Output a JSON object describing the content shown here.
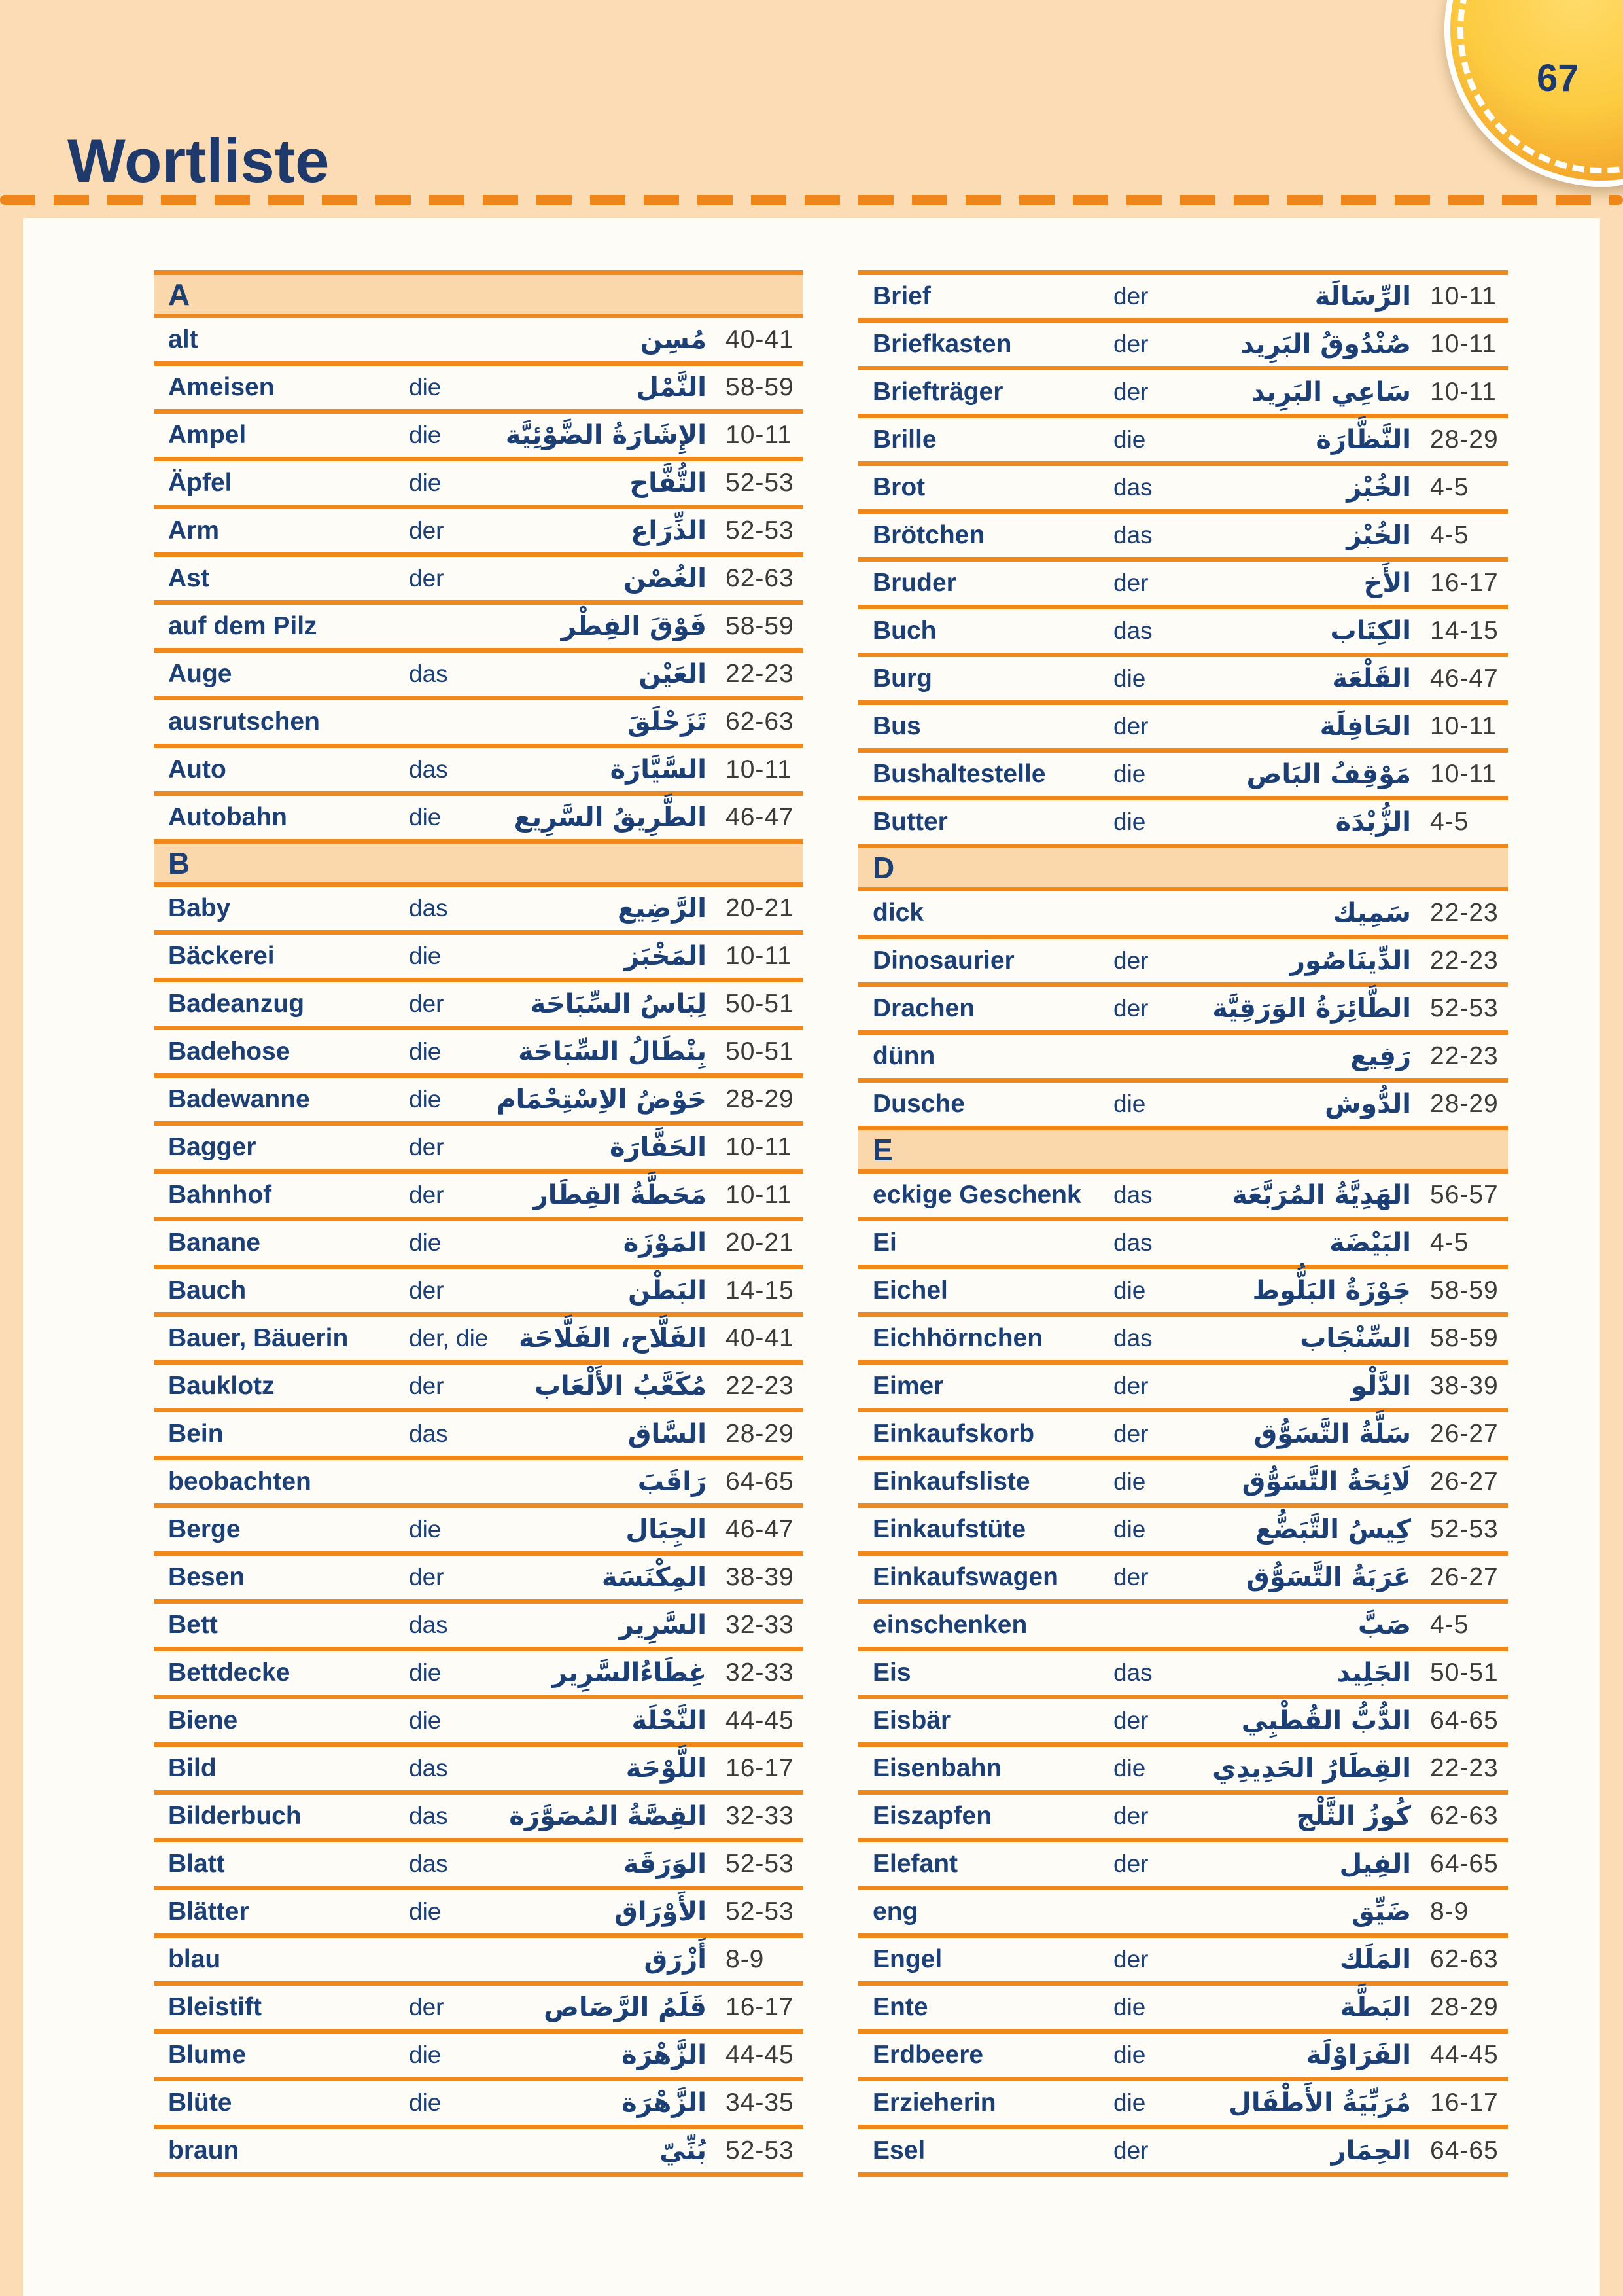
{
  "page_number": "67",
  "title": "Wortliste",
  "colors": {
    "accent_orange": "#f0881c",
    "dash_orange": "#ee8619",
    "page_peach": "#fbdcb5",
    "section_header_peach": "#fbd8ab",
    "panel_white": "#fdfcf7",
    "text_navy": "#1c4076",
    "title_navy": "#1e3a6c",
    "page_number_gray": "#3b3b39",
    "sun_yellow": "#ffdc6b",
    "sun_orange": "#ee9421"
  },
  "columns": [
    {
      "sections": [
        {
          "letter": "A",
          "entries": [
            {
              "de": "alt",
              "article": "",
              "ar": "مُسِن",
              "pages": "40-41"
            },
            {
              "de": "Ameisen",
              "article": "die",
              "ar": "النَّمْل",
              "pages": "58-59"
            },
            {
              "de": "Ampel",
              "article": "die",
              "ar": "الإِشَارَةُ الضَّوْئِيَّة",
              "pages": "10-11"
            },
            {
              "de": "Äpfel",
              "article": "die",
              "ar": "التُّفَّاح",
              "pages": "52-53"
            },
            {
              "de": "Arm",
              "article": "der",
              "ar": "الذِّرَاع",
              "pages": "52-53"
            },
            {
              "de": "Ast",
              "article": "der",
              "ar": "الغُصْن",
              "pages": "62-63"
            },
            {
              "de": "auf dem Pilz",
              "article": "",
              "ar": "فَوْقَ الفِطْر",
              "pages": "58-59"
            },
            {
              "de": "Auge",
              "article": "das",
              "ar": "العَيْن",
              "pages": "22-23"
            },
            {
              "de": "ausrutschen",
              "article": "",
              "ar": "تَزَحْلَقَ",
              "pages": "62-63"
            },
            {
              "de": "Auto",
              "article": "das",
              "ar": "السَّيَّارَة",
              "pages": "10-11"
            },
            {
              "de": "Autobahn",
              "article": "die",
              "ar": "الطَّرِيقُ السَّرِيع",
              "pages": "46-47"
            }
          ]
        },
        {
          "letter": "B",
          "entries": [
            {
              "de": "Baby",
              "article": "das",
              "ar": "الرَّضِيع",
              "pages": "20-21"
            },
            {
              "de": "Bäckerei",
              "article": "die",
              "ar": "المَخْبَز",
              "pages": "10-11"
            },
            {
              "de": "Badeanzug",
              "article": "der",
              "ar": "لِبَاسُ السِّبَاحَة",
              "pages": "50-51"
            },
            {
              "de": "Badehose",
              "article": "die",
              "ar": "بِنْطَالُ السِّبَاحَة",
              "pages": "50-51"
            },
            {
              "de": "Badewanne",
              "article": "die",
              "ar": "حَوْضُ الاِسْتِحْمَام",
              "pages": "28-29"
            },
            {
              "de": "Bagger",
              "article": "der",
              "ar": "الحَفَّارَة",
              "pages": "10-11"
            },
            {
              "de": "Bahnhof",
              "article": "der",
              "ar": "مَحَطَّةُ القِطَار",
              "pages": "10-11"
            },
            {
              "de": "Banane",
              "article": "die",
              "ar": "المَوْزَة",
              "pages": "20-21"
            },
            {
              "de": "Bauch",
              "article": "der",
              "ar": "البَطْن",
              "pages": "14-15"
            },
            {
              "de": "Bauer, Bäuerin",
              "article": "der, die",
              "ar": "الفَلَّاح، الفَلَّاحَة",
              "pages": "40-41"
            },
            {
              "de": "Bauklotz",
              "article": "der",
              "ar": "مُكَعَّبُ الأَلْعَاب",
              "pages": "22-23"
            },
            {
              "de": "Bein",
              "article": "das",
              "ar": "السَّاق",
              "pages": "28-29"
            },
            {
              "de": "beobachten",
              "article": "",
              "ar": "رَاقَبَ",
              "pages": "64-65"
            },
            {
              "de": "Berge",
              "article": "die",
              "ar": "الجِبَال",
              "pages": "46-47"
            },
            {
              "de": "Besen",
              "article": "der",
              "ar": "المِكْنَسَة",
              "pages": "38-39"
            },
            {
              "de": "Bett",
              "article": "das",
              "ar": "السَّرِير",
              "pages": "32-33"
            },
            {
              "de": "Bettdecke",
              "article": "die",
              "ar": "غِطَاءُالسَّرِير",
              "pages": "32-33"
            },
            {
              "de": "Biene",
              "article": "die",
              "ar": "النَّحْلَة",
              "pages": "44-45"
            },
            {
              "de": "Bild",
              "article": "das",
              "ar": "اللَّوْحَة",
              "pages": "16-17"
            },
            {
              "de": "Bilderbuch",
              "article": "das",
              "ar": "القِصَّةُ المُصَوَّرَة",
              "pages": "32-33"
            },
            {
              "de": "Blatt",
              "article": "das",
              "ar": "الوَرَقَة",
              "pages": "52-53"
            },
            {
              "de": "Blätter",
              "article": "die",
              "ar": "الأَوْرَاق",
              "pages": "52-53"
            },
            {
              "de": "blau",
              "article": "",
              "ar": "أَزْرَق",
              "pages": "8-9"
            },
            {
              "de": "Bleistift",
              "article": "der",
              "ar": "قَلَمُ الرَّصَاص",
              "pages": "16-17"
            },
            {
              "de": "Blume",
              "article": "die",
              "ar": "الزَّهْرَة",
              "pages": "44-45"
            },
            {
              "de": "Blüte",
              "article": "die",
              "ar": "الزَّهْرَة",
              "pages": "34-35"
            },
            {
              "de": "braun",
              "article": "",
              "ar": "بُنِّيّ",
              "pages": "52-53"
            }
          ]
        }
      ]
    },
    {
      "sections": [
        {
          "letter": "",
          "entries": [
            {
              "de": "Brief",
              "article": "der",
              "ar": "الرِّسَالَة",
              "pages": "10-11"
            },
            {
              "de": "Briefkasten",
              "article": "der",
              "ar": "صُنْدُوقُ البَرِيد",
              "pages": "10-11"
            },
            {
              "de": "Briefträger",
              "article": "der",
              "ar": "سَاعِي البَرِيد",
              "pages": "10-11"
            },
            {
              "de": "Brille",
              "article": "die",
              "ar": "النَّظَّارَة",
              "pages": "28-29"
            },
            {
              "de": "Brot",
              "article": "das",
              "ar": "الخُبْز",
              "pages": "4-5"
            },
            {
              "de": "Brötchen",
              "article": "das",
              "ar": "الخُبْز",
              "pages": "4-5"
            },
            {
              "de": "Bruder",
              "article": "der",
              "ar": "الأَخ",
              "pages": "16-17"
            },
            {
              "de": "Buch",
              "article": "das",
              "ar": "الكِتَاب",
              "pages": "14-15"
            },
            {
              "de": "Burg",
              "article": "die",
              "ar": "القَلْعَة",
              "pages": "46-47"
            },
            {
              "de": "Bus",
              "article": "der",
              "ar": "الحَافِلَة",
              "pages": "10-11"
            },
            {
              "de": "Bushaltestelle",
              "article": "die",
              "ar": "مَوْقِفُ البَاص",
              "pages": "10-11"
            },
            {
              "de": "Butter",
              "article": "die",
              "ar": "الزُّبْدَة",
              "pages": "4-5"
            }
          ]
        },
        {
          "letter": "D",
          "entries": [
            {
              "de": "dick",
              "article": "",
              "ar": "سَمِيك",
              "pages": "22-23"
            },
            {
              "de": "Dinosaurier",
              "article": "der",
              "ar": "الدِّينَاصُور",
              "pages": "22-23"
            },
            {
              "de": "Drachen",
              "article": "der",
              "ar": "الطَّائِرَةُ الوَرَقِيَّة",
              "pages": "52-53"
            },
            {
              "de": "dünn",
              "article": "",
              "ar": "رَفِيع",
              "pages": "22-23"
            },
            {
              "de": "Dusche",
              "article": "die",
              "ar": "الدُّوش",
              "pages": "28-29"
            }
          ]
        },
        {
          "letter": "E",
          "entries": [
            {
              "de": "eckige Geschenk",
              "article": "das",
              "ar": "الهَدِيَّةُ المُرَبَّعَة",
              "pages": "56-57"
            },
            {
              "de": "Ei",
              "article": "das",
              "ar": "البَيْضَة",
              "pages": "4-5"
            },
            {
              "de": "Eichel",
              "article": "die",
              "ar": "جَوْزَةُ البَلُّوط",
              "pages": "58-59"
            },
            {
              "de": "Eichhörnchen",
              "article": "das",
              "ar": "السِّنْجَاب",
              "pages": "58-59"
            },
            {
              "de": "Eimer",
              "article": "der",
              "ar": "الدَّلْو",
              "pages": "38-39"
            },
            {
              "de": "Einkaufskorb",
              "article": "der",
              "ar": "سَلَّةُ التَّسَوُّق",
              "pages": "26-27"
            },
            {
              "de": "Einkaufsliste",
              "article": "die",
              "ar": "لَائِحَةُ التَّسَوُّق",
              "pages": "26-27"
            },
            {
              "de": "Einkaufstüte",
              "article": "die",
              "ar": "كِيسُ التَّبَضُّع",
              "pages": "52-53"
            },
            {
              "de": "Einkaufswagen",
              "article": "der",
              "ar": "عَرَبَةُ التَّسَوُّق",
              "pages": "26-27"
            },
            {
              "de": "einschenken",
              "article": "",
              "ar": "صَبَّ",
              "pages": "4-5"
            },
            {
              "de": "Eis",
              "article": "das",
              "ar": "الجَلِيد",
              "pages": "50-51"
            },
            {
              "de": "Eisbär",
              "article": "der",
              "ar": "الدُّبُّ القُطْبِي",
              "pages": "64-65"
            },
            {
              "de": "Eisenbahn",
              "article": "die",
              "ar": "القِطَارُ الحَدِيدِي",
              "pages": "22-23"
            },
            {
              "de": "Eiszapfen",
              "article": "der",
              "ar": "كُوزُ الثَّلْج",
              "pages": "62-63"
            },
            {
              "de": "Elefant",
              "article": "der",
              "ar": "الفِيل",
              "pages": "64-65"
            },
            {
              "de": "eng",
              "article": "",
              "ar": "ضَيِّق",
              "pages": "8-9"
            },
            {
              "de": "Engel",
              "article": "der",
              "ar": "المَلَك",
              "pages": "62-63"
            },
            {
              "de": "Ente",
              "article": "die",
              "ar": "البَطَّة",
              "pages": "28-29"
            },
            {
              "de": "Erdbeere",
              "article": "die",
              "ar": "الفَرَاوْلَة",
              "pages": "44-45"
            },
            {
              "de": "Erzieherin",
              "article": "die",
              "ar": "مُرَبِّيَةُ الأَطْفَال",
              "pages": "16-17"
            },
            {
              "de": "Esel",
              "article": "der",
              "ar": "الحِمَار",
              "pages": "64-65"
            }
          ]
        }
      ]
    }
  ]
}
